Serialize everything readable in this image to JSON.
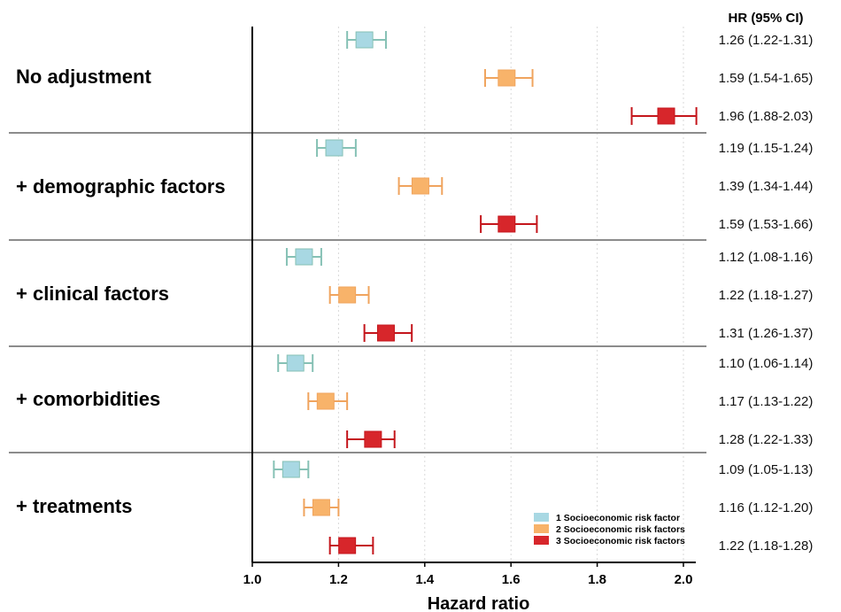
{
  "chart_data": {
    "type": "forest",
    "xlabel": "Hazard ratio",
    "column_header": "HR (95% CI)",
    "xlim": [
      1.0,
      2.0
    ],
    "xticks": [
      "1.0",
      "1.2",
      "1.4",
      "1.6",
      "1.8",
      "2.0"
    ],
    "grid": "vertical dotted",
    "legend_position": "bottom-right",
    "series": [
      {
        "name": "1 Socioeconomic risk factor",
        "color": "#a8d8e3",
        "stroke": "#86c1b5"
      },
      {
        "name": "2 Socioeconomic risk factors",
        "color": "#f8b36a",
        "stroke": "#f0a45e"
      },
      {
        "name": "3 Socioeconomic risk factors",
        "color": "#d7262b",
        "stroke": "#c4161c"
      }
    ],
    "groups": [
      {
        "label": "No adjustment",
        "rows": [
          {
            "series": 0,
            "hr": 1.26,
            "lo": 1.22,
            "hi": 1.31,
            "text": "1.26 (1.22-1.31)"
          },
          {
            "series": 1,
            "hr": 1.59,
            "lo": 1.54,
            "hi": 1.65,
            "text": "1.59 (1.54-1.65)"
          },
          {
            "series": 2,
            "hr": 1.96,
            "lo": 1.88,
            "hi": 2.03,
            "text": "1.96 (1.88-2.03)"
          }
        ]
      },
      {
        "label": "+ demographic factors",
        "rows": [
          {
            "series": 0,
            "hr": 1.19,
            "lo": 1.15,
            "hi": 1.24,
            "text": "1.19 (1.15-1.24)"
          },
          {
            "series": 1,
            "hr": 1.39,
            "lo": 1.34,
            "hi": 1.44,
            "text": "1.39 (1.34-1.44)"
          },
          {
            "series": 2,
            "hr": 1.59,
            "lo": 1.53,
            "hi": 1.66,
            "text": "1.59 (1.53-1.66)"
          }
        ]
      },
      {
        "label": "+ clinical factors",
        "rows": [
          {
            "series": 0,
            "hr": 1.12,
            "lo": 1.08,
            "hi": 1.16,
            "text": "1.12 (1.08-1.16)"
          },
          {
            "series": 1,
            "hr": 1.22,
            "lo": 1.18,
            "hi": 1.27,
            "text": "1.22 (1.18-1.27)"
          },
          {
            "series": 2,
            "hr": 1.31,
            "lo": 1.26,
            "hi": 1.37,
            "text": "1.31 (1.26-1.37)"
          }
        ]
      },
      {
        "label": "+ comorbidities",
        "rows": [
          {
            "series": 0,
            "hr": 1.1,
            "lo": 1.06,
            "hi": 1.14,
            "text": "1.10 (1.06-1.14)"
          },
          {
            "series": 1,
            "hr": 1.17,
            "lo": 1.13,
            "hi": 1.22,
            "text": "1.17 (1.13-1.22)"
          },
          {
            "series": 2,
            "hr": 1.28,
            "lo": 1.22,
            "hi": 1.33,
            "text": "1.28 (1.22-1.33)"
          }
        ]
      },
      {
        "label": "+ treatments",
        "rows": [
          {
            "series": 0,
            "hr": 1.09,
            "lo": 1.05,
            "hi": 1.13,
            "text": "1.09 (1.05-1.13)"
          },
          {
            "series": 1,
            "hr": 1.16,
            "lo": 1.12,
            "hi": 1.2,
            "text": "1.16 (1.12-1.20)"
          },
          {
            "series": 2,
            "hr": 1.22,
            "lo": 1.18,
            "hi": 1.28,
            "text": "1.22 (1.18-1.28)"
          }
        ]
      }
    ]
  }
}
